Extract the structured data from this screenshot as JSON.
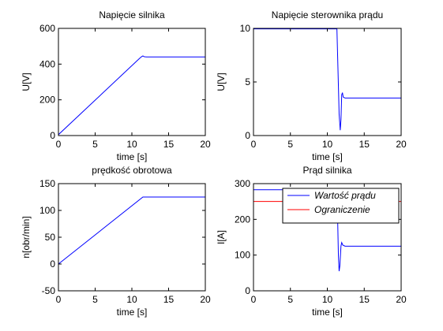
{
  "figure": {
    "background": "#ffffff"
  },
  "chart_data": [
    {
      "type": "line",
      "title": "Napięcie silnika",
      "xlabel": "time [s]",
      "ylabel": "U[V]",
      "xlim": [
        0,
        20
      ],
      "ylim": [
        0,
        600
      ],
      "xticks": [
        "0",
        "5",
        "10",
        "15",
        "20"
      ],
      "yticks": [
        "0",
        "200",
        "400",
        "600"
      ],
      "grid": false,
      "series": [
        {
          "color": "#0000ff",
          "points": [
            [
              0,
              5
            ],
            [
              11,
              430
            ],
            [
              11.3,
              441
            ],
            [
              11.5,
              446
            ],
            [
              11.7,
              441
            ],
            [
              12,
              440
            ],
            [
              20,
              440
            ]
          ]
        }
      ]
    },
    {
      "type": "line",
      "title": "Napięcie sterownika prądu",
      "xlabel": "time [s]",
      "ylabel": "U[V]",
      "xlim": [
        0,
        20
      ],
      "ylim": [
        0,
        10
      ],
      "xticks": [
        "0",
        "5",
        "10",
        "15",
        "20"
      ],
      "yticks": [
        "0",
        "5",
        "10"
      ],
      "grid": false,
      "series": [
        {
          "color": "#0000ff",
          "points": [
            [
              0,
              9.95
            ],
            [
              11.3,
              9.95
            ],
            [
              11.45,
              6
            ],
            [
              11.6,
              2
            ],
            [
              11.75,
              0.5
            ],
            [
              11.85,
              1.5
            ],
            [
              11.95,
              3.8
            ],
            [
              12.05,
              4
            ],
            [
              12.15,
              3.6
            ],
            [
              12.4,
              3.5
            ],
            [
              13,
              3.5
            ],
            [
              20,
              3.5
            ]
          ]
        }
      ]
    },
    {
      "type": "line",
      "title": "prędkość obrotowa",
      "xlabel": "time [s]",
      "ylabel": "n[obr/min]",
      "xlim": [
        0,
        20
      ],
      "ylim": [
        -50,
        150
      ],
      "xticks": [
        "0",
        "5",
        "10",
        "15",
        "20"
      ],
      "yticks": [
        "-50",
        "0",
        "50",
        "100",
        "150"
      ],
      "grid": false,
      "series": [
        {
          "color": "#0000ff",
          "points": [
            [
              0,
              0
            ],
            [
              11.5,
              125
            ],
            [
              20,
              125
            ]
          ]
        }
      ]
    },
    {
      "type": "line",
      "title": "Prąd silnika",
      "xlabel": "time [s]",
      "ylabel": "I[A]",
      "xlim": [
        0,
        20
      ],
      "ylim": [
        0,
        300
      ],
      "xticks": [
        "0",
        "5",
        "10",
        "15",
        "20"
      ],
      "yticks": [
        "0",
        "100",
        "200",
        "300"
      ],
      "grid": false,
      "legend": {
        "placement": "top-right"
      },
      "series": [
        {
          "name": "Wartość prądu",
          "color": "#0000ff",
          "points": [
            [
              0,
              283
            ],
            [
              11.3,
              283
            ],
            [
              11.4,
              200
            ],
            [
              11.5,
              100
            ],
            [
              11.6,
              55
            ],
            [
              11.7,
              70
            ],
            [
              11.85,
              125
            ],
            [
              11.95,
              135
            ],
            [
              12.1,
              128
            ],
            [
              12.4,
              125
            ],
            [
              20,
              125
            ]
          ]
        },
        {
          "name": "Ograniczenie",
          "color": "#ff0000",
          "points": [
            [
              0,
              250
            ],
            [
              20,
              250
            ]
          ]
        }
      ]
    }
  ]
}
